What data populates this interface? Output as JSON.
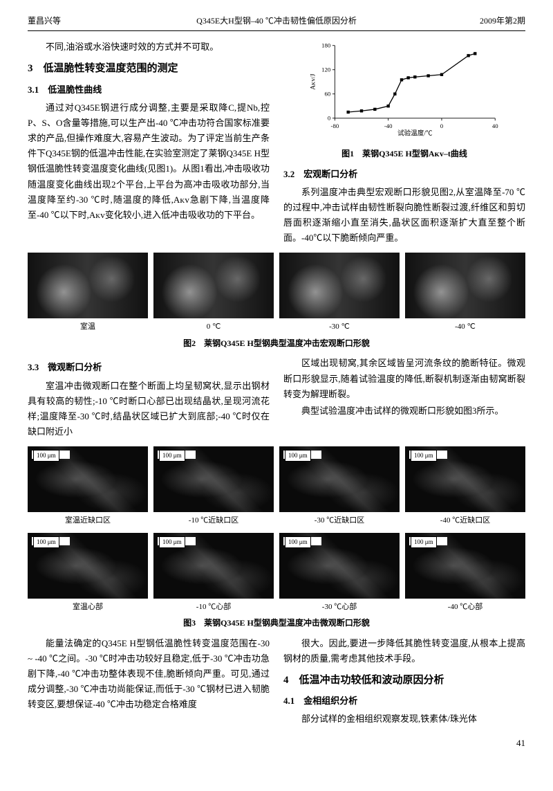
{
  "header": {
    "left": "董昌兴等",
    "center": "Q345E大H型钢–40 ℃冲击韧性偏低原因分析",
    "right": "2009年第2期"
  },
  "intro_tail": "不同,油浴或水浴快速时效的方式并不可取。",
  "sec3": {
    "title": "3　低温脆性转变温度范围的测定",
    "s31_title": "3.1　低温脆性曲线",
    "s31_body": "通过对Q345E钢进行成分调整,主要是采取降C,提Nb,控P、S、O含量等措施,可以生产出-40 ℃冲击功符合国家标准要求的产品,但操作难度大,容易产生波动。为了评定当前生产条件下Q345E钢的低温冲击性能,在实验室测定了莱钢Q345E H型钢低温脆性转变温度变化曲线(见图1)。从图1看出,冲击吸收功随温度变化曲线出现2个平台,上平台为高冲击吸收功部分,当温度降至约-30 ℃时,随温度的降低,Aᴋᴠ急剧下降,当温度降至-40 ℃以下时,Aᴋᴠ变化较小,进入低冲击吸收功的下平台。",
    "s32_title": "3.2　宏观断口分析",
    "s32_body": "系列温度冲击典型宏观断口形貌见图2,从室温降至-70 ℃的过程中,冲击试样由韧性断裂向脆性断裂过渡,纤维区和剪切唇面积逐渐缩小直至消失,晶状区面积逐渐扩大直至整个断面。-40℃以下脆断倾向严重。",
    "s33_title": "3.3　微观断口分析",
    "s33_body1": "室温冲击微观断口在整个断面上均呈韧窝状,显示出钢材具有较高的韧性;-10 ℃时断口心部已出现结晶状,呈现河流花样;温度降至-30 ℃时,结晶状区域已扩大到底部;-40 ℃时仅在缺口附近小",
    "s33_body2": "区域出现韧窝,其余区域皆呈河流条纹的脆断特征。微观断口形貌显示,随着试验温度的降低,断裂机制逐渐由韧窝断裂转变为解理断裂。",
    "s33_body3": "典型试验温度冲击试样的微观断口形貌如图3所示。",
    "s33_tail1": "能量法确定的Q345E H型钢低温脆性转变温度范围在-30 ~ -40 ℃之间。-30 ℃时冲击功较好且稳定,低于-30 ℃冲击功急剧下降,-40 ℃冲击功整体表现不佳,脆断倾向严重。可见,通过成分调整,-30 ℃冲击功尚能保证,而低于-30 ℃钢材已进入韧脆转变区,要想保证-40 ℃冲击功稳定合格难度",
    "s33_tail2": "很大。因此,要进一步降低其脆性转变温度,从根本上提高钢材的质量,需考虑其他技术手段。"
  },
  "sec4": {
    "title": "4　低温冲击功较低和波动原因分析",
    "s41_title": "4.1　金相组织分析",
    "s41_body": "部分试样的金相组织观察发现,铁素体/珠光体"
  },
  "fig1": {
    "caption": "图1　莱钢Q345E H型钢Aᴋᴠ–t曲线",
    "xlabel": "试验温度/℃",
    "ylabel": "Aᴋᴠ/J",
    "xlim": [
      -80,
      40
    ],
    "ylim": [
      0,
      180
    ],
    "xticks": [
      -80,
      -40,
      0,
      40
    ],
    "yticks": [
      0,
      60,
      120,
      180
    ],
    "points": [
      [
        -70,
        15
      ],
      [
        -60,
        18
      ],
      [
        -50,
        22
      ],
      [
        -40,
        30
      ],
      [
        -35,
        60
      ],
      [
        -30,
        95
      ],
      [
        -25,
        100
      ],
      [
        -20,
        102
      ],
      [
        -10,
        105
      ],
      [
        0,
        108
      ],
      [
        20,
        155
      ],
      [
        25,
        160
      ]
    ],
    "line_color": "#000000",
    "marker": "square",
    "marker_size": 5,
    "background_color": "#ffffff"
  },
  "fig2": {
    "caption": "图2　莱钢Q345E H型钢典型温度冲击宏观断口形貌",
    "labels": [
      "室温",
      "0 ℃",
      "-30 ℃",
      "-40 ℃"
    ]
  },
  "fig3": {
    "caption": "图3　莱钢Q345E H型钢典型温度冲击微观断口形貌",
    "scale": "100 μm",
    "row1_labels": [
      "室温近缺口区",
      "-10 ℃近缺口区",
      "-30 ℃近缺口区",
      "-40 ℃近缺口区"
    ],
    "row2_labels": [
      "室温心部",
      "-10 ℃心部",
      "-30 ℃心部",
      "-40 ℃心部"
    ]
  },
  "pagenum": "41"
}
